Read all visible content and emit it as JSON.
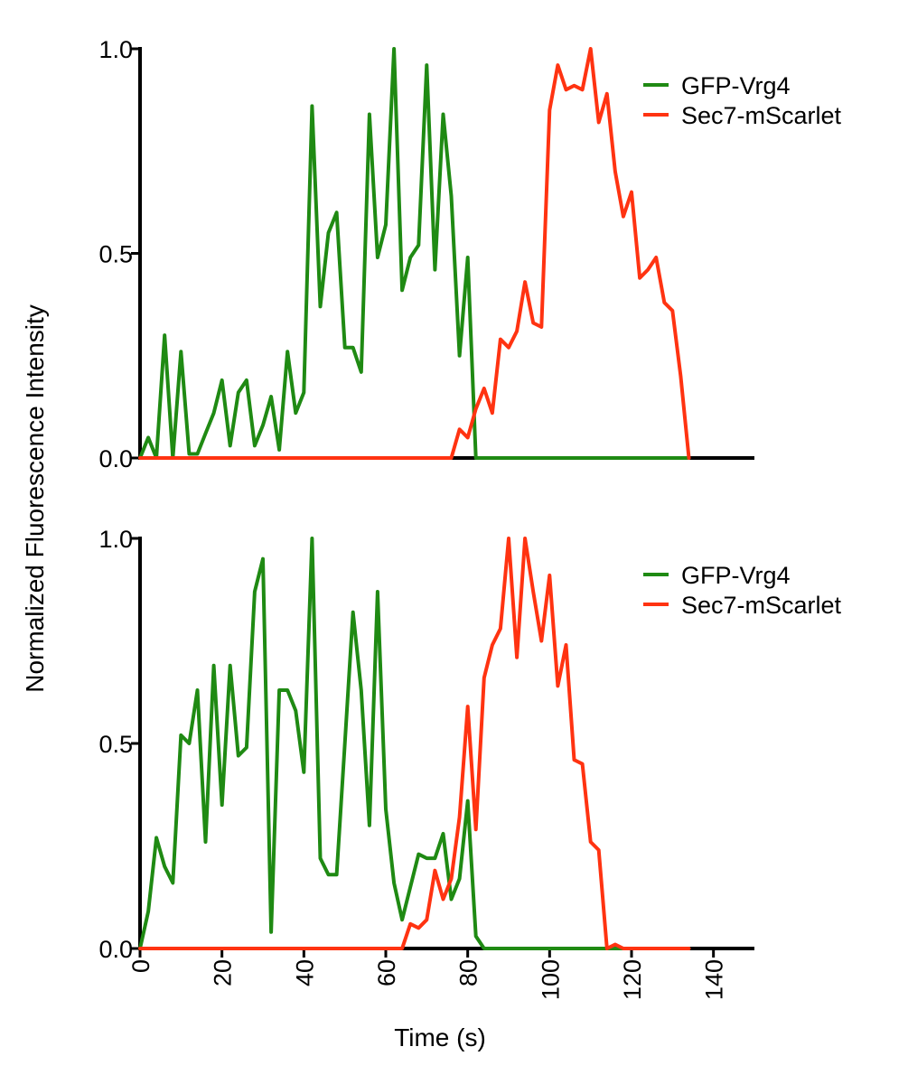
{
  "figure": {
    "ylabel": "Normalized Fluorescence Intensity",
    "xlabel": "Time (s)",
    "colors": {
      "gfp": "#1f8a13",
      "sec7": "#ff3311"
    }
  },
  "chart_data": [
    {
      "type": "line",
      "panel": "top",
      "ylim": [
        0,
        1
      ],
      "xlim": [
        0,
        150
      ],
      "yticks": [
        "0.0",
        "0.5",
        "1.0"
      ],
      "show_xticks": false,
      "legend": [
        "GFP-Vrg4",
        "Sec7-mScarlet"
      ],
      "legend_position": "top-right",
      "series": [
        {
          "name": "GFP-Vrg4",
          "color": "#1f8a13",
          "x": [
            0,
            2,
            4,
            6,
            8,
            10,
            12,
            14,
            16,
            18,
            20,
            22,
            24,
            26,
            28,
            30,
            32,
            34,
            36,
            38,
            40,
            42,
            44,
            46,
            48,
            50,
            52,
            54,
            56,
            58,
            60,
            62,
            64,
            66,
            68,
            70,
            72,
            74,
            76,
            78,
            80,
            82,
            84,
            86,
            88,
            90,
            100,
            110,
            120,
            130,
            134
          ],
          "y": [
            0,
            0.05,
            0,
            0.3,
            0,
            0.26,
            0.01,
            0.01,
            0.06,
            0.11,
            0.19,
            0.03,
            0.16,
            0.19,
            0.03,
            0.08,
            0.15,
            0.02,
            0.26,
            0.11,
            0.16,
            0.86,
            0.37,
            0.55,
            0.6,
            0.27,
            0.27,
            0.21,
            0.84,
            0.49,
            0.57,
            1.0,
            0.41,
            0.49,
            0.52,
            0.96,
            0.46,
            0.84,
            0.64,
            0.25,
            0.49,
            0,
            0,
            0,
            0,
            0,
            0,
            0,
            0,
            0,
            0
          ]
        },
        {
          "name": "Sec7-mScarlet",
          "color": "#ff3311",
          "x": [
            0,
            74,
            76,
            78,
            80,
            82,
            84,
            86,
            88,
            90,
            92,
            94,
            96,
            98,
            100,
            102,
            104,
            106,
            108,
            110,
            112,
            114,
            116,
            118,
            120,
            122,
            124,
            126,
            128,
            130,
            132,
            134
          ],
          "y": [
            0,
            0,
            0,
            0.07,
            0.05,
            0.12,
            0.17,
            0.11,
            0.29,
            0.27,
            0.31,
            0.43,
            0.33,
            0.32,
            0.85,
            0.96,
            0.9,
            0.91,
            0.9,
            1.0,
            0.82,
            0.89,
            0.7,
            0.59,
            0.65,
            0.44,
            0.46,
            0.49,
            0.38,
            0.36,
            0.2,
            0
          ]
        }
      ]
    },
    {
      "type": "line",
      "panel": "bottom",
      "ylim": [
        0,
        1
      ],
      "xlim": [
        0,
        150
      ],
      "yticks": [
        "0.0",
        "0.5",
        "1.0"
      ],
      "xticks": [
        0,
        20,
        40,
        60,
        80,
        100,
        120,
        140
      ],
      "xtick_labels": [
        "0",
        "20",
        "40",
        "60",
        "80",
        "100",
        "120",
        "140"
      ],
      "show_xticks": true,
      "legend": [
        "GFP-Vrg4",
        "Sec7-mScarlet"
      ],
      "legend_position": "top-right",
      "series": [
        {
          "name": "GFP-Vrg4",
          "color": "#1f8a13",
          "x": [
            0,
            2,
            4,
            6,
            8,
            10,
            12,
            14,
            16,
            18,
            20,
            22,
            24,
            26,
            28,
            30,
            32,
            34,
            36,
            38,
            40,
            42,
            44,
            46,
            48,
            50,
            52,
            54,
            56,
            58,
            60,
            62,
            64,
            66,
            68,
            70,
            72,
            74,
            76,
            78,
            80,
            82,
            84,
            90,
            100,
            110,
            120,
            130,
            134
          ],
          "y": [
            0,
            0.09,
            0.27,
            0.2,
            0.16,
            0.52,
            0.5,
            0.63,
            0.26,
            0.69,
            0.35,
            0.69,
            0.47,
            0.49,
            0.87,
            0.95,
            0.04,
            0.63,
            0.63,
            0.58,
            0.43,
            1.0,
            0.22,
            0.18,
            0.18,
            0.5,
            0.82,
            0.63,
            0.3,
            0.87,
            0.34,
            0.16,
            0.07,
            0.15,
            0.23,
            0.22,
            0.22,
            0.28,
            0.12,
            0.17,
            0.36,
            0.03,
            0,
            0,
            0,
            0,
            0,
            0,
            0
          ]
        },
        {
          "name": "Sec7-mScarlet",
          "color": "#ff3311",
          "x": [
            0,
            64,
            66,
            68,
            70,
            72,
            74,
            76,
            78,
            80,
            82,
            84,
            86,
            88,
            90,
            92,
            94,
            96,
            98,
            100,
            102,
            104,
            106,
            108,
            110,
            112,
            114,
            116,
            118,
            120,
            134
          ],
          "y": [
            0,
            0,
            0.06,
            0.05,
            0.07,
            0.19,
            0.12,
            0.17,
            0.32,
            0.59,
            0.29,
            0.66,
            0.74,
            0.78,
            1.0,
            0.71,
            1.0,
            0.87,
            0.75,
            0.91,
            0.64,
            0.74,
            0.46,
            0.45,
            0.26,
            0.24,
            0,
            0.01,
            0,
            0,
            0
          ]
        }
      ]
    }
  ]
}
